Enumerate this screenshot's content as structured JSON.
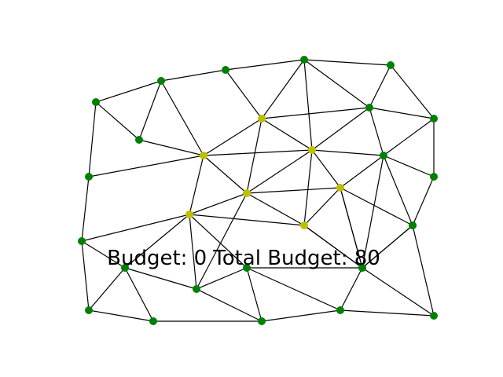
{
  "game": {
    "budget_label": "Budget: 0",
    "total_budget_label": "Total Budget: 80",
    "colors": {
      "background": "#ffffff",
      "edge": "#000000",
      "node_default": "#008000",
      "node_selected": "#bfbf00"
    },
    "nodes": [
      {
        "id": "n0",
        "state": "default"
      },
      {
        "id": "n1",
        "state": "default"
      },
      {
        "id": "n2",
        "state": "default"
      },
      {
        "id": "n3",
        "state": "default"
      },
      {
        "id": "n4",
        "state": "default"
      },
      {
        "id": "n5",
        "state": "default"
      },
      {
        "id": "n6",
        "state": "default"
      },
      {
        "id": "n7",
        "state": "default"
      },
      {
        "id": "n8",
        "state": "selected"
      },
      {
        "id": "n9",
        "state": "default"
      },
      {
        "id": "n10",
        "state": "default"
      },
      {
        "id": "n11",
        "state": "selected"
      },
      {
        "id": "n12",
        "state": "selected"
      },
      {
        "id": "n13",
        "state": "default"
      },
      {
        "id": "n14",
        "state": "default"
      },
      {
        "id": "n15",
        "state": "selected"
      },
      {
        "id": "n16",
        "state": "selected"
      },
      {
        "id": "n17",
        "state": "default"
      },
      {
        "id": "n18",
        "state": "default"
      },
      {
        "id": "n19",
        "state": "selected"
      },
      {
        "id": "n20",
        "state": "selected"
      },
      {
        "id": "n21",
        "state": "default"
      },
      {
        "id": "n22",
        "state": "default"
      },
      {
        "id": "n23",
        "state": "default"
      },
      {
        "id": "n24",
        "state": "default"
      },
      {
        "id": "n25",
        "state": "default"
      },
      {
        "id": "n26",
        "state": "default"
      },
      {
        "id": "n27",
        "state": "default"
      },
      {
        "id": "n28",
        "state": "default"
      },
      {
        "id": "n29",
        "state": "default"
      },
      {
        "id": "n30",
        "state": "default"
      },
      {
        "id": "n31",
        "state": "default"
      }
    ],
    "edges": [
      [
        "n0",
        "n1"
      ],
      [
        "n0",
        "n6"
      ],
      [
        "n0",
        "n9"
      ],
      [
        "n1",
        "n2"
      ],
      [
        "n1",
        "n6"
      ],
      [
        "n1",
        "n11"
      ],
      [
        "n2",
        "n3"
      ],
      [
        "n2",
        "n8"
      ],
      [
        "n3",
        "n4"
      ],
      [
        "n3",
        "n8"
      ],
      [
        "n3",
        "n12"
      ],
      [
        "n3",
        "n5"
      ],
      [
        "n4",
        "n5"
      ],
      [
        "n4",
        "n7"
      ],
      [
        "n5",
        "n7"
      ],
      [
        "n5",
        "n8"
      ],
      [
        "n5",
        "n12"
      ],
      [
        "n5",
        "n13"
      ],
      [
        "n6",
        "n11"
      ],
      [
        "n7",
        "n10"
      ],
      [
        "n7",
        "n13"
      ],
      [
        "n8",
        "n11"
      ],
      [
        "n8",
        "n15"
      ],
      [
        "n8",
        "n12"
      ],
      [
        "n9",
        "n11"
      ],
      [
        "n9",
        "n17"
      ],
      [
        "n10",
        "n13"
      ],
      [
        "n10",
        "n14"
      ],
      [
        "n11",
        "n12"
      ],
      [
        "n11",
        "n15"
      ],
      [
        "n11",
        "n16"
      ],
      [
        "n12",
        "n13"
      ],
      [
        "n12",
        "n15"
      ],
      [
        "n12",
        "n19"
      ],
      [
        "n12",
        "n20"
      ],
      [
        "n13",
        "n14"
      ],
      [
        "n13",
        "n18"
      ],
      [
        "n13",
        "n19"
      ],
      [
        "n14",
        "n19"
      ],
      [
        "n14",
        "n18"
      ],
      [
        "n15",
        "n16"
      ],
      [
        "n15",
        "n19"
      ],
      [
        "n15",
        "n20"
      ],
      [
        "n16",
        "n17"
      ],
      [
        "n16",
        "n20"
      ],
      [
        "n16",
        "n21"
      ],
      [
        "n16",
        "n22"
      ],
      [
        "n16",
        "n23"
      ],
      [
        "n15",
        "n22"
      ],
      [
        "n17",
        "n21"
      ],
      [
        "n17",
        "n26"
      ],
      [
        "n18",
        "n19"
      ],
      [
        "n18",
        "n20"
      ],
      [
        "n18",
        "n31"
      ],
      [
        "n19",
        "n20"
      ],
      [
        "n19",
        "n24"
      ],
      [
        "n20",
        "n24"
      ],
      [
        "n21",
        "n22"
      ],
      [
        "n21",
        "n26"
      ],
      [
        "n21",
        "n27"
      ],
      [
        "n22",
        "n23"
      ],
      [
        "n22",
        "n28"
      ],
      [
        "n23",
        "n24"
      ],
      [
        "n23",
        "n28"
      ],
      [
        "n23",
        "n29"
      ],
      [
        "n24",
        "n29"
      ],
      [
        "n24",
        "n30"
      ],
      [
        "n27",
        "n28"
      ],
      [
        "n26",
        "n27"
      ],
      [
        "n28",
        "n29"
      ],
      [
        "n29",
        "n30"
      ],
      [
        "n30",
        "n31"
      ]
    ]
  }
}
